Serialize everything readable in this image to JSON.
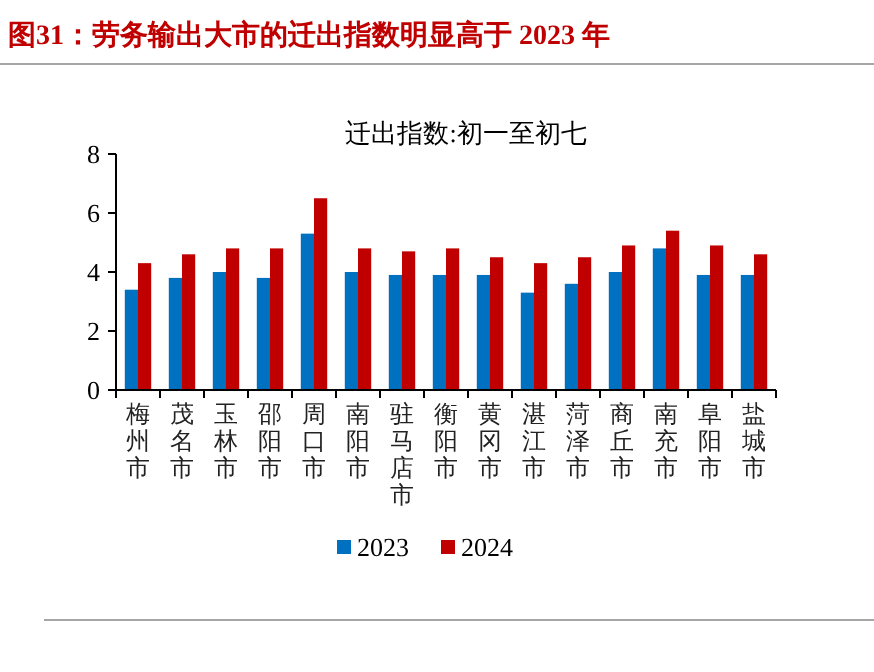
{
  "chart_data": {
    "type": "bar",
    "title": "图31：劳务输出大市的迁出指数明显高于 2023 年",
    "subtitle": "迁出指数:初一至初七",
    "categories": [
      "梅州市",
      "茂名市",
      "玉林市",
      "邵阳市",
      "周口市",
      "南阳市",
      "驻马店市",
      "衡阳市",
      "黄冈市",
      "湛江市",
      "菏泽市",
      "商丘市",
      "南充市",
      "阜阳市",
      "盐城市"
    ],
    "series": [
      {
        "name": "2023",
        "color": "#0070c0",
        "values": [
          3.4,
          3.8,
          4.0,
          3.8,
          5.3,
          4.0,
          3.9,
          3.9,
          3.9,
          3.3,
          3.6,
          4.0,
          4.8,
          3.9,
          3.9
        ]
      },
      {
        "name": "2024",
        "color": "#c00000",
        "values": [
          4.3,
          4.6,
          4.8,
          4.8,
          6.5,
          4.8,
          4.7,
          4.8,
          4.5,
          4.3,
          4.5,
          4.9,
          5.4,
          4.9,
          4.6
        ]
      }
    ],
    "ylim": [
      0,
      8
    ],
    "yticks": [
      0,
      2,
      4,
      6,
      8
    ],
    "grid": false,
    "legend": "bottom"
  }
}
